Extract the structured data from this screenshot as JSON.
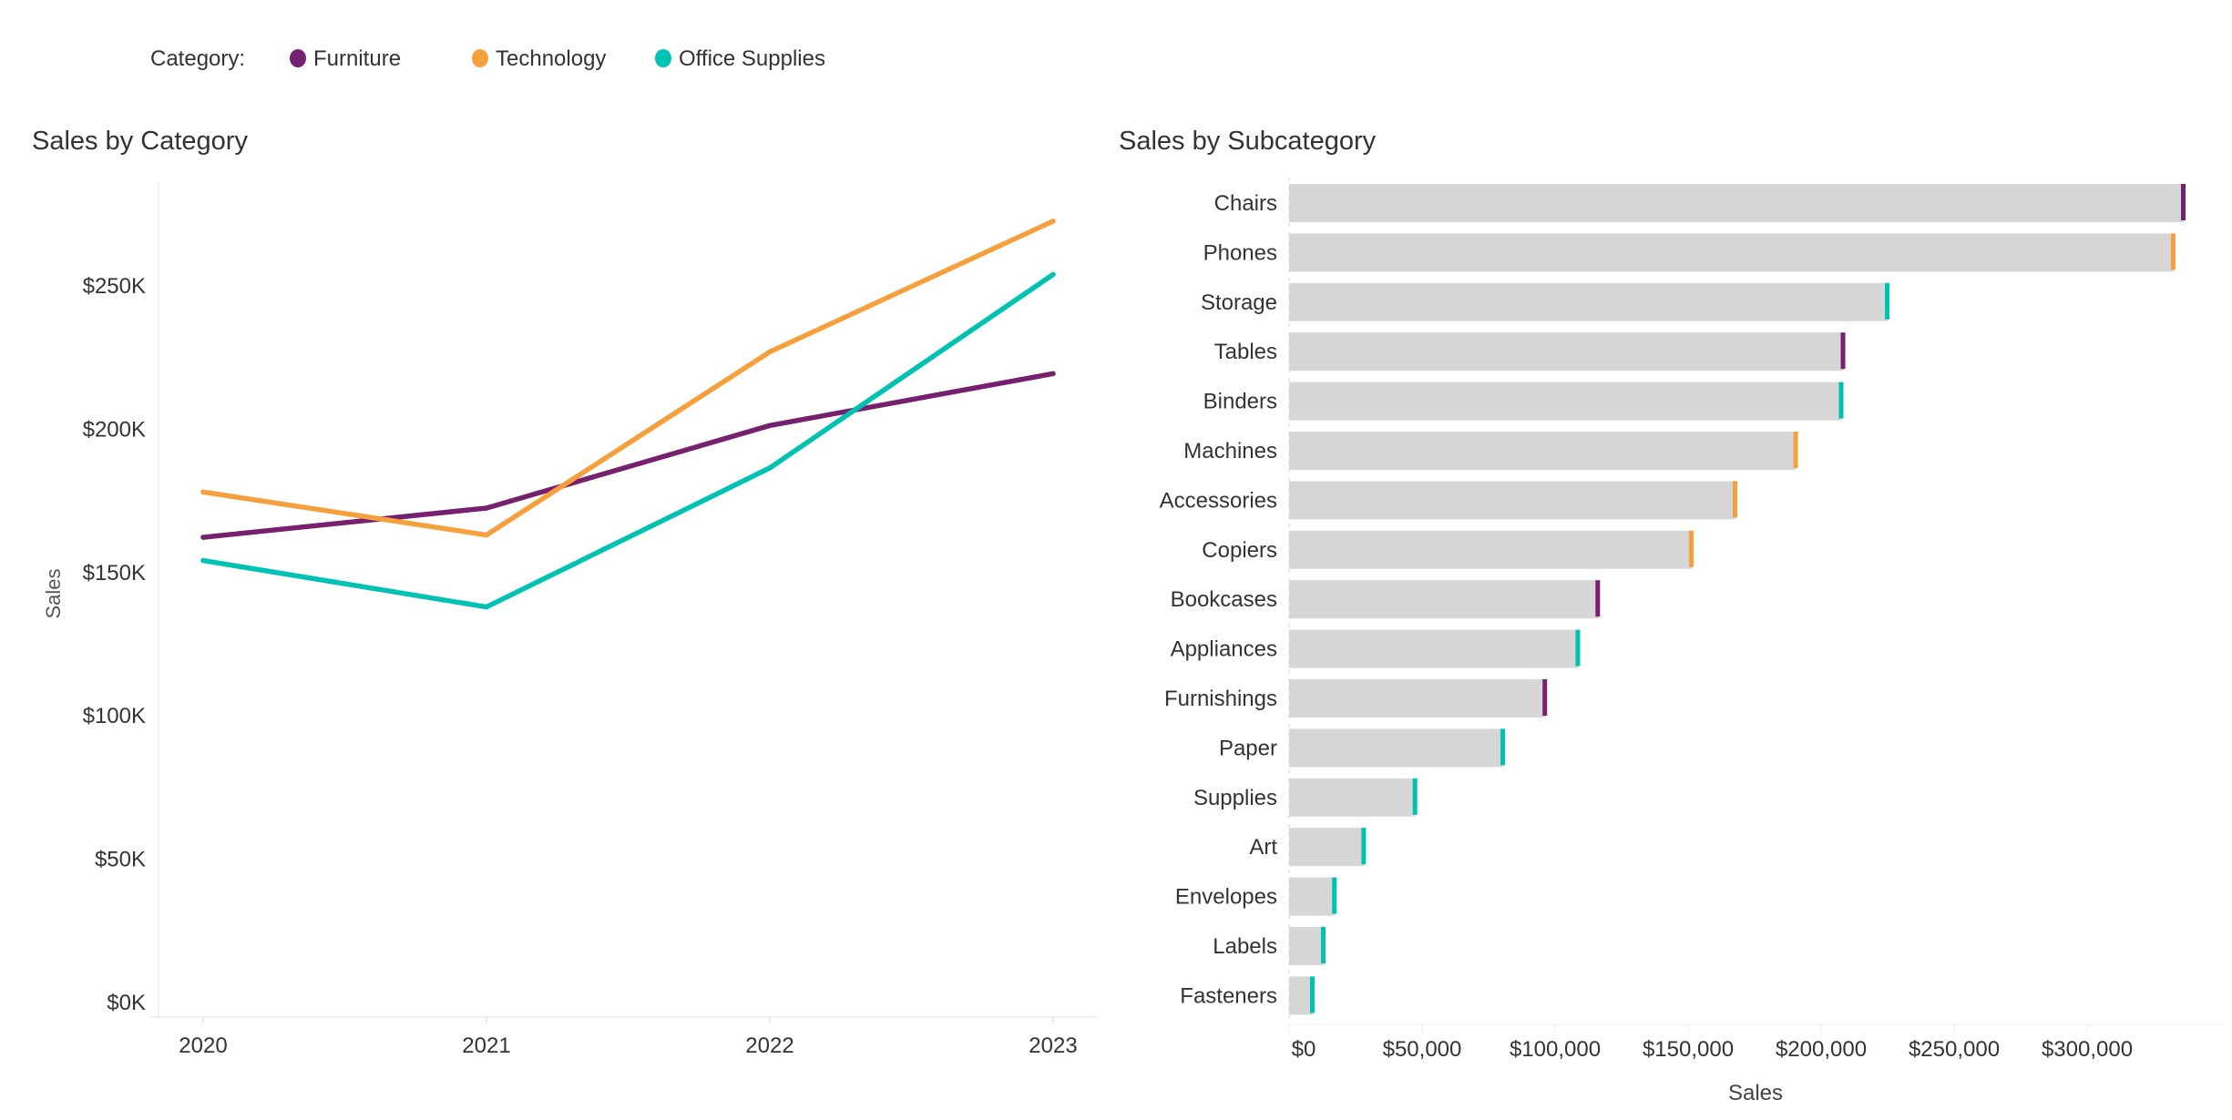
{
  "legend": {
    "title": "Category:",
    "items": [
      {
        "label": "Furniture",
        "color": "#76206f"
      },
      {
        "label": "Technology",
        "color": "#f5a03d"
      },
      {
        "label": "Office Supplies",
        "color": "#00c2b2"
      }
    ]
  },
  "chart_data": [
    {
      "type": "line",
      "title": "Sales by Category",
      "xlabel": "",
      "ylabel": "Sales",
      "x": [
        "2020",
        "2021",
        "2022",
        "2023"
      ],
      "ylim": [
        0,
        285000
      ],
      "yticks": [
        0,
        50000,
        100000,
        150000,
        200000,
        250000
      ],
      "ytick_labels": [
        "$0K",
        "$50K",
        "$100K",
        "$150K",
        "$200K",
        "$250K"
      ],
      "grid": false,
      "legend": "top",
      "series": [
        {
          "name": "Furniture",
          "color": "#76206f",
          "values": [
            162300,
            172500,
            201300,
            219400
          ]
        },
        {
          "name": "Technology",
          "color": "#f5a03d",
          "values": [
            178100,
            163100,
            227000,
            272600
          ]
        },
        {
          "name": "Office Supplies",
          "color": "#00c2b2",
          "values": [
            154200,
            138000,
            186500,
            254000
          ]
        }
      ]
    },
    {
      "type": "bar",
      "orientation": "horizontal",
      "title": "Sales by Subcategory",
      "xlabel": "Sales",
      "ylabel": "",
      "xlim": [
        0,
        345000
      ],
      "xticks": [
        0,
        50000,
        100000,
        150000,
        200000,
        250000,
        300000
      ],
      "xtick_labels": [
        "$0",
        "$50,000",
        "$100,000",
        "$150,000",
        "$200,000",
        "$250,000",
        "$300,000"
      ],
      "bar_color": "#d6d6d6",
      "categories": [
        "Chairs",
        "Phones",
        "Storage",
        "Tables",
        "Binders",
        "Machines",
        "Accessories",
        "Copiers",
        "Bookcases",
        "Appliances",
        "Furnishings",
        "Paper",
        "Supplies",
        "Art",
        "Envelopes",
        "Labels",
        "Fasteners"
      ],
      "values": [
        336300,
        332500,
        225000,
        208400,
        207700,
        190600,
        167800,
        151400,
        116200,
        108700,
        96300,
        80500,
        47500,
        28200,
        17200,
        13000,
        8900
      ],
      "marker_category": [
        "Furniture",
        "Technology",
        "Office Supplies",
        "Furniture",
        "Office Supplies",
        "Technology",
        "Technology",
        "Technology",
        "Furniture",
        "Office Supplies",
        "Furniture",
        "Office Supplies",
        "Office Supplies",
        "Office Supplies",
        "Office Supplies",
        "Office Supplies",
        "Office Supplies"
      ]
    }
  ]
}
